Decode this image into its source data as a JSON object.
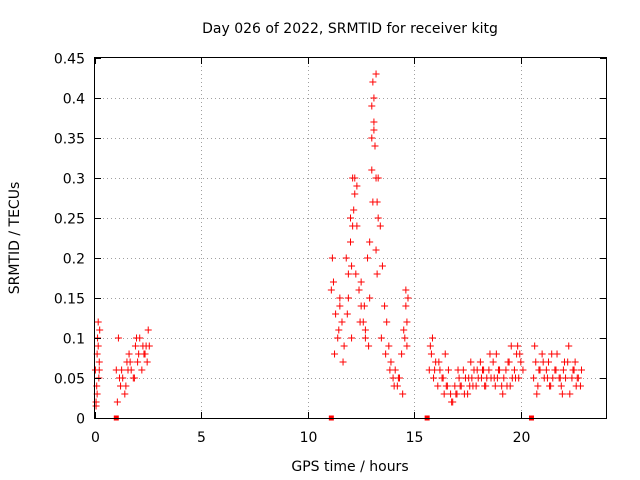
{
  "chart_data": {
    "type": "scatter",
    "title": "Day 026 of 2022, SRMTID for receiver kitg",
    "xlabel": "GPS time / hours",
    "ylabel": "SRMTID / TECUs",
    "xlim": [
      0,
      24
    ],
    "ylim": [
      0,
      0.45
    ],
    "x_ticks": [
      0,
      5,
      10,
      15,
      20
    ],
    "x_tick_labels": [
      "0",
      "5",
      "10",
      "15",
      "20"
    ],
    "y_ticks": [
      0,
      0.05,
      0.1,
      0.15,
      0.2,
      0.25,
      0.3,
      0.35,
      0.4,
      0.45
    ],
    "y_tick_labels": [
      "0",
      "0.05",
      "0.1",
      "0.15",
      "0.2",
      "0.25",
      "0.3",
      "0.35",
      "0.4",
      "0.45"
    ],
    "grid": true,
    "marker": "plus",
    "color": "#ff0000",
    "zero_markers_x": [
      1.0,
      11.1,
      15.6,
      20.5
    ],
    "series": [
      {
        "name": "SRMTID",
        "x": [
          0.02,
          0.05,
          0.08,
          0.1,
          0.12,
          0.15,
          0.18,
          0.2,
          0.22,
          0.05,
          0.1,
          0.15,
          0.2,
          1.0,
          1.1,
          1.2,
          1.3,
          1.4,
          1.5,
          1.6,
          1.7,
          1.8,
          1.9,
          2.0,
          2.1,
          2.2,
          2.3,
          2.4,
          2.5,
          1.05,
          1.25,
          1.45,
          1.65,
          1.85,
          2.05,
          2.25,
          2.45,
          1.15,
          1.55,
          1.95,
          2.35,
          2.55,
          11.1,
          11.15,
          11.2,
          11.3,
          11.4,
          11.5,
          11.6,
          11.7,
          11.8,
          11.9,
          12.0,
          12.1,
          12.2,
          12.3,
          12.4,
          12.5,
          12.6,
          12.7,
          12.8,
          12.9,
          13.0,
          13.1,
          13.2,
          13.3,
          13.4,
          13.5,
          13.6,
          13.7,
          13.8,
          13.9,
          14.0,
          14.1,
          14.2,
          14.3,
          14.4,
          14.5,
          14.6,
          14.7,
          11.25,
          11.45,
          11.65,
          11.85,
          12.05,
          12.25,
          12.45,
          12.65,
          12.85,
          13.05,
          13.25,
          13.45,
          13.65,
          13.85,
          14.05,
          14.25,
          14.45,
          14.65,
          11.5,
          11.9,
          12.0,
          12.05,
          12.1,
          12.15,
          12.2,
          12.3,
          12.5,
          12.7,
          12.9,
          13.0,
          13.05,
          13.1,
          13.15,
          13.2,
          13.25,
          13.3,
          13.0,
          13.1,
          13.2,
          14.6,
          14.65,
          14.55,
          15.7,
          15.8,
          15.9,
          16.0,
          16.1,
          16.2,
          16.3,
          16.4,
          16.5,
          16.6,
          16.7,
          16.8,
          16.9,
          17.0,
          17.1,
          17.2,
          17.3,
          17.4,
          17.5,
          17.6,
          17.7,
          17.8,
          17.9,
          18.0,
          18.1,
          18.2,
          18.3,
          18.4,
          18.5,
          18.6,
          18.7,
          18.8,
          18.9,
          19.0,
          19.1,
          19.2,
          19.3,
          19.4,
          19.5,
          19.6,
          19.7,
          19.8,
          19.9,
          20.0,
          20.1,
          15.75,
          15.95,
          16.15,
          16.35,
          16.55,
          16.75,
          16.95,
          17.15,
          17.35,
          17.55,
          17.75,
          17.95,
          18.15,
          18.35,
          18.55,
          18.75,
          18.95,
          19.15,
          19.35,
          19.55,
          19.75,
          19.95,
          15.85,
          16.45,
          17.05,
          17.65,
          18.25,
          18.85,
          19.45,
          19.85,
          20.6,
          20.7,
          20.8,
          20.9,
          21.0,
          21.1,
          21.2,
          21.3,
          21.4,
          21.5,
          21.6,
          21.7,
          21.8,
          21.9,
          22.0,
          22.1,
          22.2,
          22.3,
          22.4,
          22.5,
          22.6,
          22.7,
          22.8,
          20.65,
          20.85,
          21.05,
          21.25,
          21.45,
          21.65,
          21.85,
          22.05,
          22.25,
          22.45,
          22.65,
          22.85,
          20.75,
          21.35,
          21.95,
          22.55
        ],
        "y": [
          0.06,
          0.02,
          0.04,
          0.08,
          0.1,
          0.12,
          0.05,
          0.07,
          0.11,
          0.015,
          0.03,
          0.09,
          0.06,
          0.06,
          0.1,
          0.04,
          0.05,
          0.03,
          0.07,
          0.08,
          0.06,
          0.05,
          0.09,
          0.07,
          0.1,
          0.06,
          0.08,
          0.09,
          0.11,
          0.02,
          0.06,
          0.04,
          0.07,
          0.05,
          0.08,
          0.09,
          0.07,
          0.05,
          0.06,
          0.1,
          0.08,
          0.09,
          0.16,
          0.2,
          0.17,
          0.13,
          0.1,
          0.15,
          0.12,
          0.09,
          0.2,
          0.18,
          0.25,
          0.3,
          0.28,
          0.24,
          0.16,
          0.14,
          0.12,
          0.11,
          0.2,
          0.22,
          0.35,
          0.4,
          0.43,
          0.3,
          0.24,
          0.19,
          0.14,
          0.12,
          0.09,
          0.07,
          0.05,
          0.06,
          0.04,
          0.05,
          0.08,
          0.11,
          0.16,
          0.15,
          0.08,
          0.11,
          0.07,
          0.13,
          0.1,
          0.18,
          0.12,
          0.14,
          0.09,
          0.27,
          0.18,
          0.1,
          0.08,
          0.06,
          0.04,
          0.05,
          0.03,
          0.09,
          0.14,
          0.15,
          0.22,
          0.19,
          0.24,
          0.26,
          0.3,
          0.29,
          0.17,
          0.1,
          0.15,
          0.39,
          0.42,
          0.37,
          0.34,
          0.3,
          0.27,
          0.25,
          0.31,
          0.36,
          0.21,
          0.14,
          0.12,
          0.1,
          0.06,
          0.08,
          0.05,
          0.07,
          0.04,
          0.06,
          0.05,
          0.03,
          0.04,
          0.06,
          0.03,
          0.02,
          0.04,
          0.03,
          0.05,
          0.04,
          0.06,
          0.05,
          0.03,
          0.04,
          0.05,
          0.06,
          0.04,
          0.05,
          0.07,
          0.06,
          0.04,
          0.05,
          0.06,
          0.05,
          0.07,
          0.04,
          0.05,
          0.06,
          0.04,
          0.05,
          0.06,
          0.07,
          0.04,
          0.05,
          0.06,
          0.08,
          0.05,
          0.07,
          0.06,
          0.09,
          0.06,
          0.07,
          0.05,
          0.04,
          0.02,
          0.03,
          0.04,
          0.03,
          0.05,
          0.04,
          0.06,
          0.05,
          0.04,
          0.08,
          0.05,
          0.06,
          0.03,
          0.04,
          0.09,
          0.05,
          0.08,
          0.1,
          0.08,
          0.06,
          0.07,
          0.06,
          0.08,
          0.07,
          0.09,
          0.05,
          0.07,
          0.04,
          0.06,
          0.08,
          0.05,
          0.06,
          0.07,
          0.04,
          0.05,
          0.06,
          0.08,
          0.05,
          0.04,
          0.06,
          0.05,
          0.07,
          0.03,
          0.05,
          0.06,
          0.04,
          0.05,
          0.04,
          0.09,
          0.06,
          0.07,
          0.05,
          0.08,
          0.06,
          0.05,
          0.07,
          0.09,
          0.06,
          0.05,
          0.06,
          0.03,
          0.04,
          0.03,
          0.07
        ]
      }
    ]
  }
}
